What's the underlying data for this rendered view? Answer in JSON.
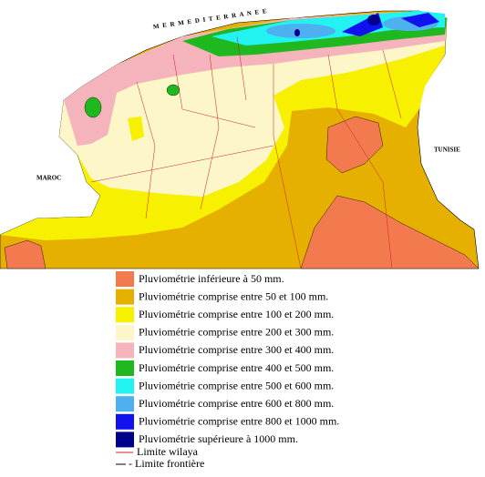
{
  "map": {
    "labels": {
      "sea": "M E R   M E D I T E R R A N E E",
      "west": "MAROC",
      "east": "TUNISIE"
    },
    "legend": [
      {
        "label": "Pluviométrie inférieure à 50 mm.",
        "color": "#f27a4e"
      },
      {
        "label": "Pluviométrie comprise entre 50 et 100 mm.",
        "color": "#e6b000"
      },
      {
        "label": "Pluviométrie comprise entre 100 et 200 mm.",
        "color": "#f7f000"
      },
      {
        "label": "Pluviométrie comprise entre 200 et 300 mm.",
        "color": "#fcf6c8"
      },
      {
        "label": "Pluviométrie comprise entre 300 et 400 mm.",
        "color": "#f5b3bb"
      },
      {
        "label": "Pluviométrie comprise entre 400 et 500 mm.",
        "color": "#1fb81f"
      },
      {
        "label": "Pluviométrie comprise entre 500 et 600 mm.",
        "color": "#22f2f2"
      },
      {
        "label": "Pluviométrie comprise entre 600 et 800 mm.",
        "color": "#4fb0f0"
      },
      {
        "label": "Pluviométrie comprise entre 800 et 1000 mm.",
        "color": "#1212f0"
      },
      {
        "label": "Pluviométrie supérieure à 1000 mm.",
        "color": "#00008c"
      }
    ],
    "lines": [
      {
        "label": "Limite wilaya",
        "color": "#cc2222"
      },
      {
        "label": "- Limite frontière",
        "color": "#000000"
      }
    ]
  }
}
